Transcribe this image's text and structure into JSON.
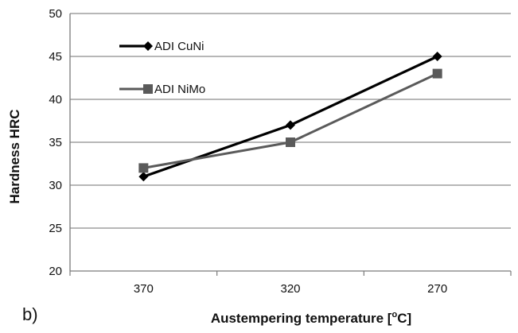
{
  "chart_data": {
    "type": "line",
    "panel_label": "b)",
    "title": "",
    "xlabel": "Austempering temperature [",
    "xlabel_sup": "o",
    "xlabel_suffix": "C]",
    "ylabel": "Hardness HRC",
    "categories": [
      "370",
      "320",
      "270"
    ],
    "ylim": [
      20,
      50
    ],
    "yticks": [
      20,
      25,
      30,
      35,
      40,
      45,
      50
    ],
    "grid": true,
    "legend_position": "upper-left (inside plot)",
    "series": [
      {
        "name": "ADI CuNi",
        "values": [
          31,
          37,
          45
        ],
        "marker": "diamond",
        "color": "#000000"
      },
      {
        "name": "ADI NiMo",
        "values": [
          32,
          35,
          43
        ],
        "marker": "square",
        "color": "#5a5a5a"
      }
    ]
  }
}
